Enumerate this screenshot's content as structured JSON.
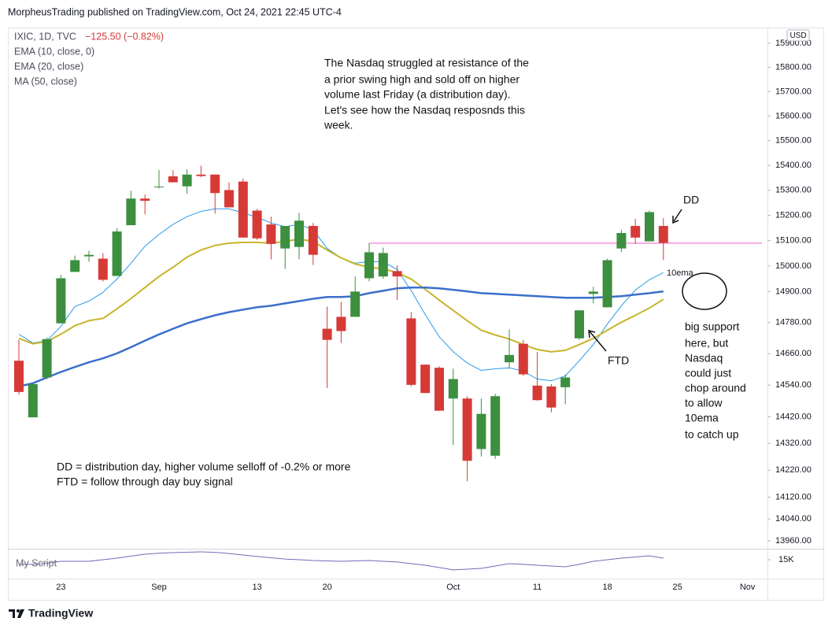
{
  "header": {
    "text": "MorpheusTrading published on TradingView.com, Oct 24, 2021 22:45 UTC-4"
  },
  "chart_data": {
    "type": "candlestick",
    "symbol": "IXIC, 1D, TVC",
    "change": "−125.50 (−0.82%)",
    "currency": "USD",
    "log": true,
    "grid": false,
    "up_color": "#3b8f3f",
    "down_color": "#d63a36",
    "categories": [
      null,
      null,
      null,
      "23",
      null,
      null,
      null,
      null,
      null,
      null,
      "Sep",
      null,
      null,
      null,
      null,
      null,
      null,
      "13",
      null,
      null,
      null,
      null,
      "20",
      null,
      null,
      null,
      null,
      null,
      null,
      null,
      null,
      "Oct",
      null,
      null,
      null,
      null,
      null,
      "11",
      null,
      null,
      null,
      null,
      "18",
      null,
      null,
      null,
      null,
      "25",
      null,
      null,
      null,
      null,
      "Nov",
      null
    ],
    "open": [
      14633,
      14418,
      14569,
      14777,
      14977,
      15038,
      15029,
      14961,
      15161,
      15267,
      15313,
      15356,
      15316,
      15363,
      15363,
      15301,
      15335,
      15219,
      15164,
      15069,
      15075,
      15158,
      14756,
      14802,
      14802,
      14952,
      14959,
      14980,
      14796,
      14618,
      14606,
      14489,
      14489,
      14299,
      14274,
      14627,
      14698,
      14538,
      14535,
      14532,
      14719,
      14891,
      14839,
      15069,
      15158,
      15097,
      15158,
      null,
      null,
      null,
      null,
      null,
      null,
      null
    ],
    "high": [
      14713,
      14544,
      14722,
      14965,
      15041,
      15060,
      15051,
      15149,
      15298,
      15283,
      15381,
      15381,
      15384,
      15399,
      15363,
      15332,
      15347,
      15226,
      15195,
      15158,
      15210,
      15170,
      14842,
      14860,
      14959,
      15090,
      15072,
      15002,
      14821,
      14618,
      14612,
      14603,
      14498,
      14489,
      14507,
      14753,
      14713,
      14667,
      14544,
      14581,
      14827,
      14919,
      15029,
      15143,
      15186,
      15219,
      15189,
      null,
      null,
      null,
      null,
      null,
      null,
      null
    ],
    "low": [
      14504,
      14418,
      14563,
      14777,
      14977,
      15017,
      14940,
      14961,
      15161,
      15204,
      15307,
      15332,
      15286,
      15353,
      15207,
      15232,
      15112,
      15103,
      15026,
      14989,
      15026,
      15004,
      14529,
      14701,
      14802,
      14940,
      14950,
      14867,
      14535,
      14510,
      14443,
      14314,
      14179,
      14271,
      14262,
      14602,
      14575,
      14480,
      14437,
      14467,
      14713,
      14854,
      14839,
      15054,
      15087,
      15097,
      15023,
      null,
      null,
      null,
      null,
      null,
      null,
      null
    ],
    "close": [
      14514,
      14544,
      14716,
      14952,
      15023,
      15044,
      14946,
      15136,
      15267,
      15258,
      15315,
      15332,
      15363,
      15357,
      15289,
      15232,
      15112,
      15109,
      15087,
      15158,
      15179,
      15044,
      14713,
      14747,
      14900,
      15054,
      15051,
      14959,
      14541,
      14510,
      14443,
      14563,
      14255,
      14431,
      14498,
      14655,
      14581,
      14483,
      14455,
      14569,
      14827,
      14900,
      15023,
      15130,
      15112,
      15213,
      15091,
      null,
      null,
      null,
      null,
      null,
      null,
      null
    ],
    "overlays": [
      {
        "name": "EMA (10, close, 0)",
        "color": "#2a9ae8",
        "width": 1,
        "values": [
          14735,
          14701,
          14710,
          14765,
          14842,
          14863,
          14897,
          14949,
          15011,
          15078,
          15124,
          15164,
          15195,
          15216,
          15226,
          15226,
          15210,
          15192,
          15170,
          15155,
          15164,
          15143,
          15069,
          15032,
          15011,
          15017,
          15017,
          14986,
          14904,
          14811,
          14725,
          14667,
          14624,
          14596,
          14602,
          14606,
          14593,
          14563,
          14556,
          14575,
          14633,
          14695,
          14774,
          14845,
          14906,
          14946,
          14974,
          null,
          null,
          null,
          null,
          null,
          null,
          null
        ]
      },
      {
        "name": "EMA (20, close)",
        "color": "#c8b42a",
        "width": 2,
        "values": [
          14719,
          14698,
          14707,
          14735,
          14768,
          14787,
          14796,
          14833,
          14873,
          14916,
          14959,
          14995,
          15035,
          15063,
          15081,
          15090,
          15093,
          15093,
          15090,
          15097,
          15106,
          15097,
          15063,
          15032,
          15008,
          14995,
          14989,
          14974,
          14949,
          14909,
          14867,
          14827,
          14787,
          14750,
          14732,
          14716,
          14695,
          14676,
          14667,
          14673,
          14695,
          14719,
          14750,
          14781,
          14808,
          14836,
          14870,
          null,
          null,
          null,
          null,
          null,
          null,
          null
        ]
      },
      {
        "name": "MA (50, close)",
        "color": "#3a6fcc",
        "width": 2.5,
        "values": [
          14535,
          14547,
          14569,
          14590,
          14609,
          14627,
          14642,
          14661,
          14685,
          14710,
          14734,
          14756,
          14777,
          14793,
          14808,
          14820,
          14830,
          14839,
          14845,
          14854,
          14863,
          14872,
          14879,
          14879,
          14882,
          14894,
          14903,
          14913,
          14916,
          14916,
          14913,
          14907,
          14901,
          14894,
          14891,
          14888,
          14885,
          14882,
          14879,
          14876,
          14876,
          14876,
          14879,
          14882,
          14888,
          14894,
          14901,
          null,
          null,
          null,
          null,
          null,
          null,
          null
        ]
      }
    ],
    "resistance": {
      "value": 15090,
      "from": 25,
      "color": "#f27fd0"
    },
    "ylim": [
      13931,
      15962
    ],
    "yticks": [
      {
        "value": 15900,
        "label": "15900.00"
      },
      {
        "value": 15800,
        "label": "15800.00"
      },
      {
        "value": 15700,
        "label": "15700.00"
      },
      {
        "value": 15600,
        "label": "15600.00"
      },
      {
        "value": 15500,
        "label": "15500.00"
      },
      {
        "value": 15400,
        "label": "15400.00"
      },
      {
        "value": 15300,
        "label": "15300.00"
      },
      {
        "value": 15200,
        "label": "15200.00"
      },
      {
        "value": 15100,
        "label": "15100.00"
      },
      {
        "value": 15000,
        "label": "15000.00"
      },
      {
        "value": 14900,
        "label": "14900.00"
      },
      {
        "value": 14780,
        "label": "14780.00"
      },
      {
        "value": 14660,
        "label": "14660.00"
      },
      {
        "value": 14540,
        "label": "14540.00"
      },
      {
        "value": 14420,
        "label": "14420.00"
      },
      {
        "value": 14320,
        "label": "14320.00"
      },
      {
        "value": 14220,
        "label": "14220.00"
      },
      {
        "value": 14120,
        "label": "14120.00"
      },
      {
        "value": 14040,
        "label": "14040.00"
      },
      {
        "value": 13960,
        "label": "13960.00"
      }
    ],
    "sub_pane": {
      "title": "My Script",
      "color": "#7a68b8",
      "values": [
        10400,
        10400,
        11500,
        13400,
        13400,
        13400,
        15000,
        16500,
        18500,
        20400,
        21300,
        21900,
        22300,
        22700,
        22200,
        21100,
        19600,
        18100,
        16900,
        15700,
        15000,
        14200,
        13800,
        13400,
        13800,
        14200,
        13400,
        12700,
        11100,
        9600,
        7300,
        5000,
        5700,
        6500,
        8800,
        11100,
        10400,
        9600,
        8800,
        8000,
        10400,
        13400,
        15000,
        16500,
        17700,
        18800,
        16500,
        null,
        null,
        null,
        null,
        null,
        null,
        null
      ],
      "ylim": [
        -2000,
        25000
      ],
      "yticks": [
        {
          "value": 15000,
          "label": "15K"
        }
      ]
    },
    "annotations": {
      "commentary": [
        "The Nasdaq struggled at resistance of the",
        "a prior swing high and sold off on higher",
        "volume last Friday (a distribution day).",
        "Let's see how the Nasdaq resposnds this",
        "week."
      ],
      "definitions": [
        "DD = distribution day, higher volume selloff of -0.2% or more",
        "FTD = follow through day buy signal"
      ],
      "support": [
        "big support",
        "here, but",
        "Nasdaq",
        "could just",
        "chop around",
        "to allow",
        "10ema",
        "to catch up"
      ],
      "dd": "DD",
      "ftd": "FTD",
      "ema_label": "10ema"
    }
  },
  "footer": {
    "brand": "TradingView"
  }
}
